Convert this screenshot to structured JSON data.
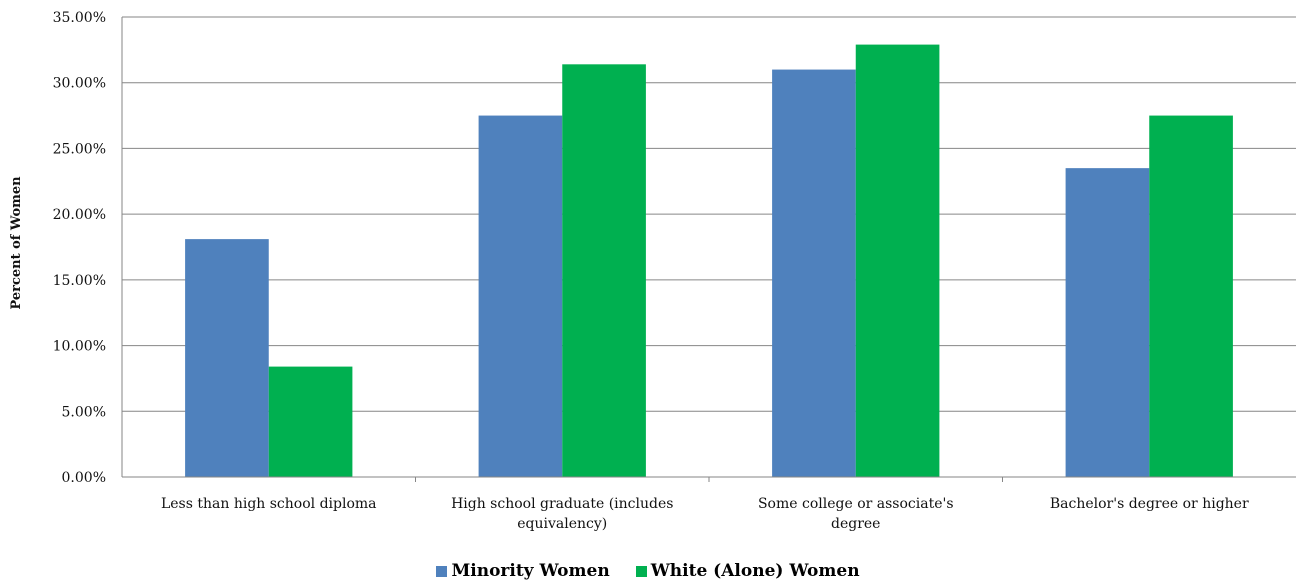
{
  "chart_data": {
    "type": "bar",
    "title": "",
    "xlabel": "",
    "ylabel": "Percent of Women",
    "ylim": [
      0,
      35
    ],
    "yticks": [
      "0.00%",
      "5.00%",
      "10.00%",
      "15.00%",
      "20.00%",
      "25.00%",
      "30.00%",
      "35.00%"
    ],
    "grid": true,
    "legend_position": "bottom",
    "categories": [
      [
        "Less than high school diploma"
      ],
      [
        "High school graduate (includes",
        "equivalency)"
      ],
      [
        "Some college or associate's",
        "degree"
      ],
      [
        "Bachelor's degree or higher"
      ]
    ],
    "series": [
      {
        "name": "Minority Women",
        "color": "#4F81BD",
        "values": [
          18.1,
          27.5,
          31.0,
          23.5
        ]
      },
      {
        "name": "White (Alone) Women",
        "color": "#00B050",
        "values": [
          8.4,
          31.4,
          32.9,
          27.5
        ]
      }
    ]
  }
}
